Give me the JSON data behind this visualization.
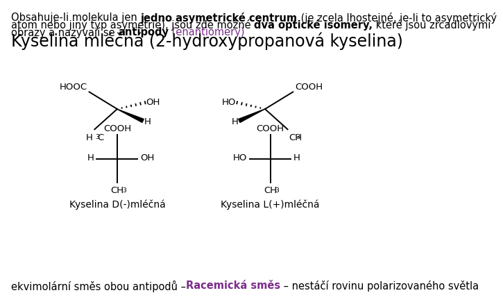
{
  "background_color": "#ffffff",
  "title_text": "Kyselina mléčná (2-hydroxypropanová kyselina)",
  "title_fontsize": 17,
  "purple_color": "#7B2D8B",
  "black": "#000000",
  "header_line1": [
    {
      "text": "Obsahuje-li molekula jen ",
      "bold": false
    },
    {
      "text": "jedno asymetrické centrum",
      "bold": true
    },
    {
      "text": " (je zcela lhostejné, je-li to asymetrický",
      "bold": false
    }
  ],
  "header_line2": [
    {
      "text": "atom nebo jiný typ asymetrie), jsou zde možné ",
      "bold": false
    },
    {
      "text": "dva optické isomery,",
      "bold": true
    },
    {
      "text": " které jsou zrcadlovými",
      "bold": false
    }
  ],
  "header_line3_black": [
    {
      "text": "obrazy a nazývají se ",
      "bold": false
    },
    {
      "text": "antipody",
      "bold": true
    }
  ],
  "header_line3_purple": " (enantiomery)",
  "footer_black1": "ekvimolární směs obou antipodů –",
  "footer_purple": "Racemická směs",
  "footer_black2": " – nestáčí rovinu polarizovaného světla",
  "label_D": "Kyselina D(-)mléčná",
  "label_L": "Kyselina L(+)mléčná",
  "fontsize_header": 10.5,
  "fontsize_title": 17,
  "fontsize_mol": 9.5,
  "fontsize_label": 10
}
